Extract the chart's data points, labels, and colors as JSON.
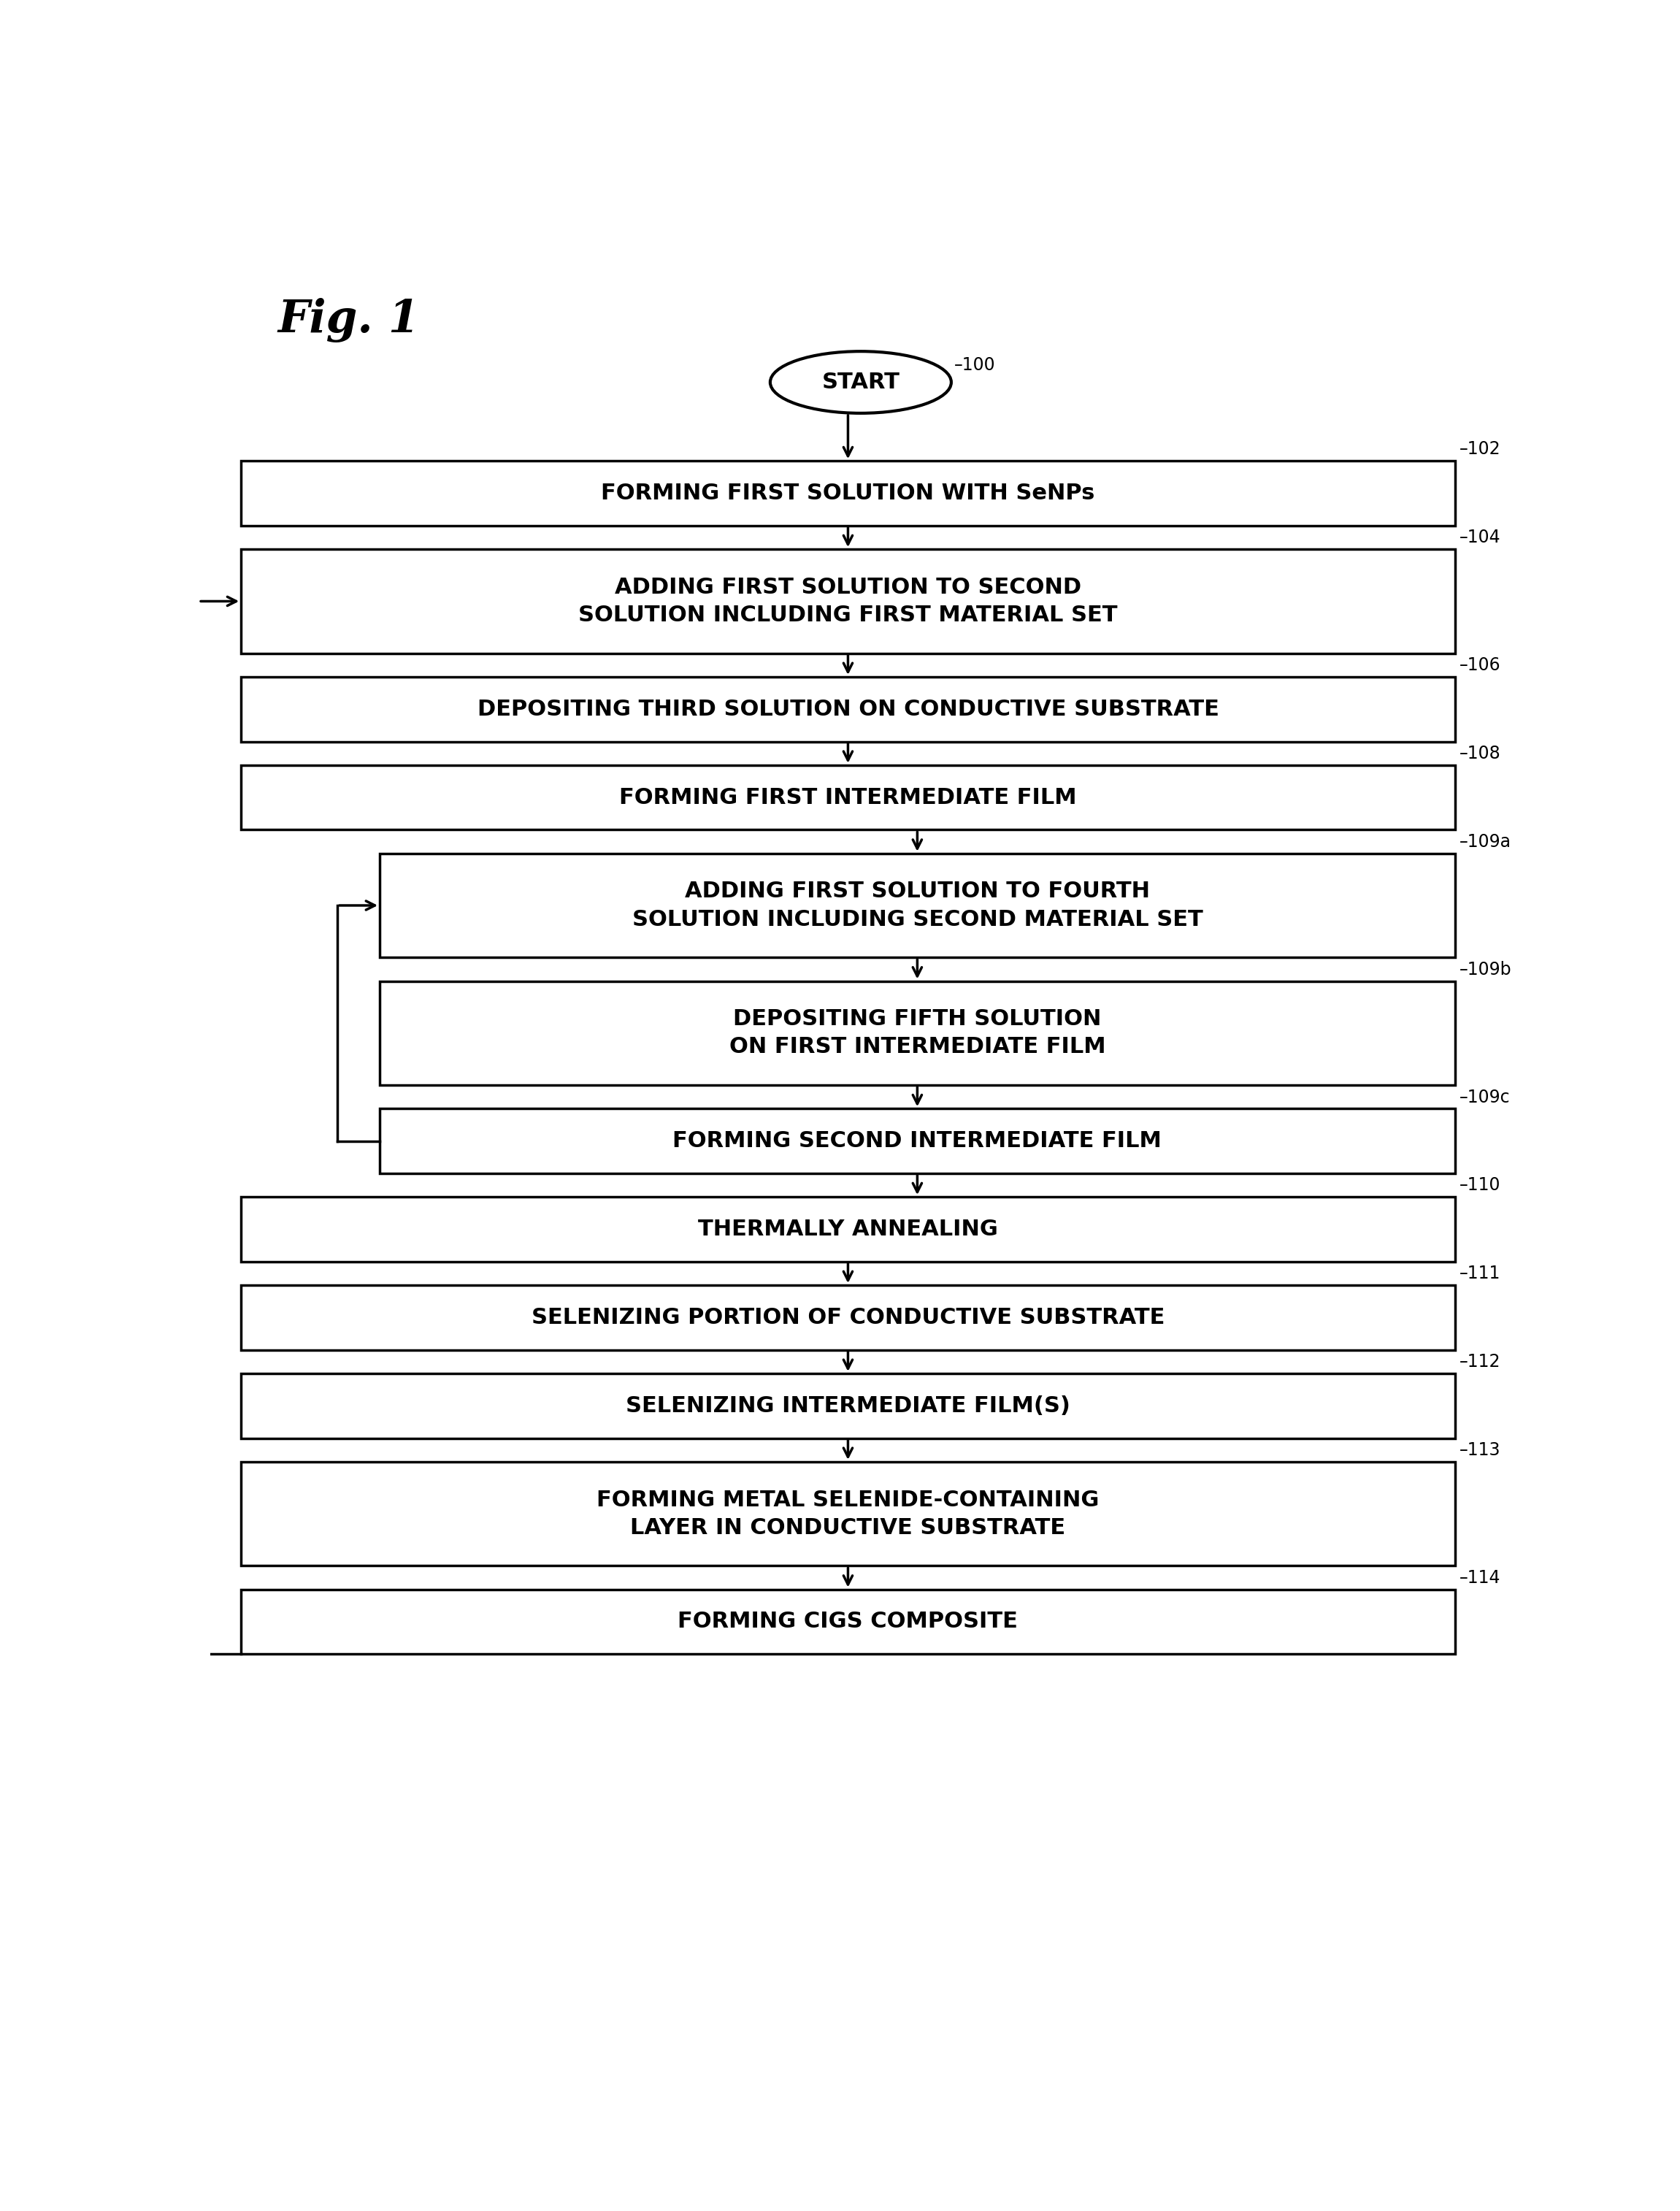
{
  "title": "Fig. 1",
  "background_color": "#ffffff",
  "start_label": "START",
  "start_ref": "100",
  "boxes": [
    {
      "id": "102",
      "label": "FORMING FIRST SOLUTION WITH SeNPs",
      "lines": [
        "FORMING FIRST SOLUTION WITH SeNPs"
      ],
      "ref": "102",
      "indent": 0,
      "tall": false
    },
    {
      "id": "104",
      "label": "ADDING FIRST SOLUTION TO SECOND\nSOLUTION INCLUDING FIRST MATERIAL SET",
      "lines": [
        "ADDING FIRST SOLUTION TO SECOND",
        "SOLUTION INCLUDING FIRST MATERIAL SET"
      ],
      "ref": "104",
      "indent": 0,
      "tall": true
    },
    {
      "id": "106",
      "label": "DEPOSITING THIRD SOLUTION ON CONDUCTIVE SUBSTRATE",
      "lines": [
        "DEPOSITING THIRD SOLUTION ON CONDUCTIVE SUBSTRATE"
      ],
      "ref": "106",
      "indent": 0,
      "tall": false
    },
    {
      "id": "108",
      "label": "FORMING FIRST INTERMEDIATE FILM",
      "lines": [
        "FORMING FIRST INTERMEDIATE FILM"
      ],
      "ref": "108",
      "indent": 0,
      "tall": false
    },
    {
      "id": "109a",
      "label": "ADDING FIRST SOLUTION TO FOURTH\nSOLUTION INCLUDING SECOND MATERIAL SET",
      "lines": [
        "ADDING FIRST SOLUTION TO FOURTH",
        "SOLUTION INCLUDING SECOND MATERIAL SET"
      ],
      "ref": "109a",
      "indent": 1,
      "tall": true
    },
    {
      "id": "109b",
      "label": "DEPOSITING FIFTH SOLUTION\nON FIRST INTERMEDIATE FILM",
      "lines": [
        "DEPOSITING FIFTH SOLUTION",
        "ON FIRST INTERMEDIATE FILM"
      ],
      "ref": "109b",
      "indent": 1,
      "tall": true
    },
    {
      "id": "109c",
      "label": "FORMING SECOND INTERMEDIATE FILM",
      "lines": [
        "FORMING SECOND INTERMEDIATE FILM"
      ],
      "ref": "109c",
      "indent": 1,
      "tall": false
    },
    {
      "id": "110",
      "label": "THERMALLY ANNEALING",
      "lines": [
        "THERMALLY ANNEALING"
      ],
      "ref": "110",
      "indent": 0,
      "tall": false
    },
    {
      "id": "111",
      "label": "SELENIZING PORTION OF CONDUCTIVE SUBSTRATE",
      "lines": [
        "SELENIZING PORTION OF CONDUCTIVE SUBSTRATE"
      ],
      "ref": "111",
      "indent": 0,
      "tall": false
    },
    {
      "id": "112",
      "label": "SELENIZING INTERMEDIATE FILM(S)",
      "lines": [
        "SELENIZING INTERMEDIATE FILM(S)"
      ],
      "ref": "112",
      "indent": 0,
      "tall": false
    },
    {
      "id": "113",
      "label": "FORMING METAL SELENIDE-CONTAINING\nLAYER IN CONDUCTIVE SUBSTRATE",
      "lines": [
        "FORMING METAL SELENIDE-CONTAINING",
        "LAYER IN CONDUCTIVE SUBSTRATE"
      ],
      "ref": "113",
      "indent": 0,
      "tall": true
    },
    {
      "id": "114",
      "label": "FORMING CIGS COMPOSITE",
      "lines": [
        "FORMING CIGS COMPOSITE"
      ],
      "ref": "114",
      "indent": 0,
      "tall": false
    }
  ],
  "box_color": "#ffffff",
  "box_edge_color": "#000000",
  "text_color": "#000000",
  "arrow_color": "#000000",
  "font_size": 22,
  "ref_font_size": 17,
  "title_font_size": 44,
  "lw": 2.5
}
